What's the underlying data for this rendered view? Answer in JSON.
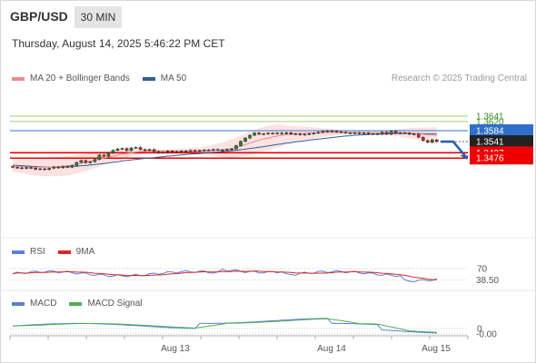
{
  "header": {
    "pair": "GBP/USD",
    "timeframe": "30 MIN",
    "datetime": "Thursday, August 14, 2025 5:46:22 PM CET"
  },
  "legend": {
    "ma20_label": "MA 20 + Bollinger Bands",
    "ma50_label": "MA 50",
    "research": "Research © 2025 Trading Central"
  },
  "rsi_legend": {
    "rsi": "RSI",
    "ma9": "9MA"
  },
  "macd_legend": {
    "macd": "MACD",
    "signal": "MACD Signal"
  },
  "colors": {
    "candle_up": "#2e7d32",
    "candle_down": "#c62828",
    "ma20": "#f08a8a",
    "bands": "#fcd8d8",
    "ma50": "#2f5f9a",
    "resistance": "#9bd36a",
    "pivot": "#5b8fd6",
    "support": "#ee0000",
    "rsi": "#5b7fd6",
    "rsi_ma": "#d62828",
    "macd": "#5b7fd6",
    "macd_signal": "#4caf50"
  },
  "chart_data": {
    "type": "candlestick",
    "x_labels": [
      "Aug 13",
      "Aug 14",
      "Aug 15"
    ],
    "levels": [
      {
        "value": 1.3641,
        "label": "1.3641",
        "kind": "resistance"
      },
      {
        "value": 1.362,
        "label": "1.3620",
        "kind": "resistance"
      },
      {
        "value": 1.3584,
        "label": "1.3584",
        "kind": "pivot"
      },
      {
        "value": 1.3541,
        "label": "1.3541",
        "kind": "last"
      },
      {
        "value": 1.3497,
        "label": "1.3497",
        "kind": "support"
      },
      {
        "value": 1.3476,
        "label": "1.3476",
        "kind": "support"
      }
    ],
    "price_close": [
      1.344,
      1.3438,
      1.3436,
      1.3439,
      1.3437,
      1.3432,
      1.3434,
      1.3431,
      1.3436,
      1.3441,
      1.3438,
      1.3443,
      1.344,
      1.3447,
      1.3459,
      1.3467,
      1.3458,
      1.3462,
      1.3471,
      1.3488,
      1.3483,
      1.3496,
      1.3507,
      1.3512,
      1.3514,
      1.3506,
      1.3516,
      1.3518,
      1.351,
      1.3506,
      1.351,
      1.3502,
      1.3498,
      1.35,
      1.3504,
      1.3502,
      1.35,
      1.3504,
      1.3502,
      1.3506,
      1.3504,
      1.3506,
      1.3508,
      1.3507,
      1.351,
      1.3508,
      1.3508,
      1.351,
      1.3512,
      1.3525,
      1.3542,
      1.3555,
      1.3566,
      1.3575,
      1.357,
      1.3572,
      1.3574,
      1.3573,
      1.3575,
      1.3572,
      1.3576,
      1.357,
      1.3572,
      1.3568,
      1.357,
      1.3572,
      1.3574,
      1.3578,
      1.3581,
      1.3583,
      1.3582,
      1.358,
      1.3578,
      1.3575,
      1.3574,
      1.3576,
      1.3573,
      1.3575,
      1.3571,
      1.3572,
      1.357,
      1.3578,
      1.357,
      1.3582,
      1.3574,
      1.3576,
      1.3575,
      1.357,
      1.3571,
      1.3558,
      1.3545,
      1.3538,
      1.3548,
      1.3541
    ],
    "ma20": [
      1.3445,
      1.3444,
      1.3443,
      1.3442,
      1.3441,
      1.344,
      1.344,
      1.344,
      1.3441,
      1.3442,
      1.3443,
      1.3444,
      1.3446,
      1.3448,
      1.3452,
      1.3456,
      1.3459,
      1.3463,
      1.3467,
      1.3472,
      1.3476,
      1.348,
      1.3484,
      1.3488,
      1.3491,
      1.3494,
      1.3497,
      1.35,
      1.3502,
      1.3503,
      1.3504,
      1.3504,
      1.3504,
      1.3504,
      1.3504,
      1.3504,
      1.3504,
      1.3504,
      1.3504,
      1.3505,
      1.3505,
      1.3505,
      1.3506,
      1.3506,
      1.3507,
      1.3508,
      1.3509,
      1.3511,
      1.3514,
      1.3518,
      1.3523,
      1.3529,
      1.3535,
      1.3541,
      1.3546,
      1.3551,
      1.3555,
      1.3559,
      1.3563,
      1.3566,
      1.3569,
      1.3571,
      1.3572,
      1.3573,
      1.3574,
      1.3575,
      1.3575,
      1.3576,
      1.3576,
      1.3577,
      1.3577,
      1.3577,
      1.3577,
      1.3577,
      1.3577,
      1.3577,
      1.3577,
      1.3576,
      1.3576,
      1.3576,
      1.3576,
      1.3576,
      1.3576,
      1.3576,
      1.3576,
      1.3576,
      1.3575,
      1.3575,
      1.3574,
      1.3572,
      1.357,
      1.3568,
      1.3567,
      1.3565
    ],
    "ma50": [
      1.3448,
      1.3447,
      1.3446,
      1.3445,
      1.3444,
      1.3443,
      1.3442,
      1.3441,
      1.3441,
      1.3441,
      1.3441,
      1.3442,
      1.3442,
      1.3443,
      1.3444,
      1.3446,
      1.3447,
      1.3449,
      1.3451,
      1.3453,
      1.3455,
      1.3457,
      1.346,
      1.3462,
      1.3465,
      1.3467,
      1.3469,
      1.3471,
      1.3473,
      1.3475,
      1.3477,
      1.3478,
      1.348,
      1.3482,
      1.3484,
      1.3485,
      1.3487,
      1.3489,
      1.349,
      1.3492,
      1.3493,
      1.3494,
      1.3496,
      1.3497,
      1.3499,
      1.35,
      1.3502,
      1.3503,
      1.3505,
      1.3507,
      1.3509,
      1.3511,
      1.3514,
      1.3516,
      1.3519,
      1.3521,
      1.3524,
      1.3527,
      1.353,
      1.3532,
      1.3535,
      1.3537,
      1.354,
      1.3542,
      1.3544,
      1.3547,
      1.3549,
      1.3551,
      1.3553,
      1.3555,
      1.3557,
      1.3559,
      1.3561,
      1.3563,
      1.3564,
      1.3566,
      1.3567,
      1.3568,
      1.3569,
      1.357,
      1.3571,
      1.3571,
      1.3572,
      1.3572,
      1.3573,
      1.3573,
      1.3573,
      1.3573,
      1.3573,
      1.3573,
      1.3572,
      1.3572,
      1.3572,
      1.3571
    ],
    "rsi": {
      "levels": [
        {
          "value": 70,
          "label": "70"
        },
        {
          "value": 38.5,
          "label": "38.50"
        }
      ],
      "ylim": [
        0,
        100
      ]
    },
    "macd": {
      "levels": [
        {
          "value": 0,
          "label": "0"
        },
        {
          "value": -0.0,
          "label": "-0.00"
        }
      ]
    }
  }
}
